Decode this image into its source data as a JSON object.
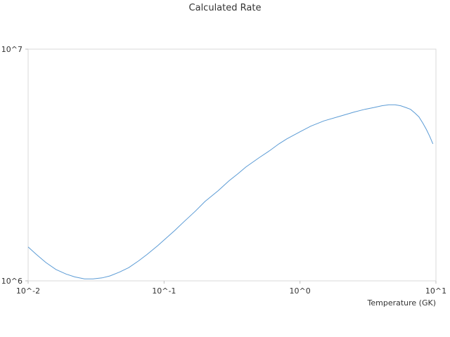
{
  "chart_data": {
    "type": "line",
    "title": "Calculated Rate",
    "xlabel": "Temperature (GK)",
    "ylabel": "",
    "x_scale": "log",
    "y_scale": "log",
    "xlim": [
      0.01,
      10
    ],
    "ylim": [
      1000000,
      10000000
    ],
    "x_ticks": [
      {
        "value": 0.01,
        "label": "10^-2"
      },
      {
        "value": 0.1,
        "label": "10^-1"
      },
      {
        "value": 1,
        "label": "10^0"
      },
      {
        "value": 10,
        "label": "10^1"
      }
    ],
    "y_ticks": [
      {
        "value": 1000000,
        "label": "10^6"
      },
      {
        "value": 10000000,
        "label": "10^7"
      }
    ],
    "grid": false,
    "legend": "none",
    "series": [
      {
        "color": "#5b9bd5",
        "x": [
          0.01,
          0.0115,
          0.0135,
          0.016,
          0.019,
          0.022,
          0.026,
          0.03,
          0.035,
          0.04,
          0.047,
          0.055,
          0.065,
          0.075,
          0.09,
          0.1,
          0.12,
          0.14,
          0.17,
          0.2,
          0.25,
          0.3,
          0.35,
          0.4,
          0.5,
          0.6,
          0.7,
          0.8,
          1.0,
          1.2,
          1.5,
          2.0,
          2.5,
          3.0,
          3.5,
          4.0,
          4.5,
          5.0,
          5.5,
          6.0,
          6.5,
          7.0,
          7.5,
          8.0,
          8.5,
          9.0,
          9.5
        ],
        "y": [
          1400000,
          1300000,
          1200000,
          1120000,
          1070000,
          1040000,
          1020000,
          1020000,
          1030000,
          1050000,
          1090000,
          1140000,
          1220000,
          1300000,
          1420000,
          1500000,
          1650000,
          1800000,
          2000000,
          2200000,
          2450000,
          2700000,
          2900000,
          3100000,
          3400000,
          3650000,
          3900000,
          4100000,
          4400000,
          4650000,
          4900000,
          5150000,
          5350000,
          5500000,
          5600000,
          5700000,
          5750000,
          5750000,
          5700000,
          5600000,
          5500000,
          5300000,
          5100000,
          4800000,
          4500000,
          4200000,
          3900000
        ]
      }
    ]
  }
}
